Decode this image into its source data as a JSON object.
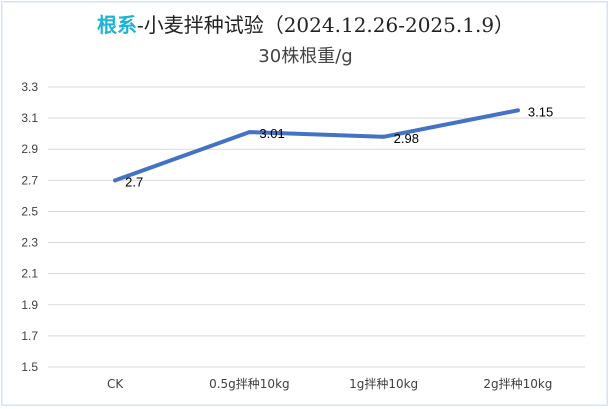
{
  "chart_data": {
    "type": "line",
    "title_accent": "根系",
    "title_rest": "-小麦拌种试验（2024.12.26-2025.1.9）",
    "subtitle": "30株根重/g",
    "categories": [
      "CK",
      "0.5g拌种10kg",
      "1g拌种10kg",
      "2g拌种10kg"
    ],
    "series": [
      {
        "values": [
          2.7,
          3.01,
          2.98,
          3.15
        ],
        "labels": [
          "2.7",
          "3.01",
          "2.98",
          "3.15"
        ]
      }
    ],
    "y_ticks": [
      "1.5",
      "1.7",
      "1.9",
      "2.1",
      "2.3",
      "2.5",
      "2.7",
      "2.9",
      "3.1",
      "3.3"
    ],
    "ylim": [
      1.5,
      3.3
    ],
    "grid": true,
    "line_color": "#4472c4",
    "grid_color": "#d9d9d9"
  }
}
